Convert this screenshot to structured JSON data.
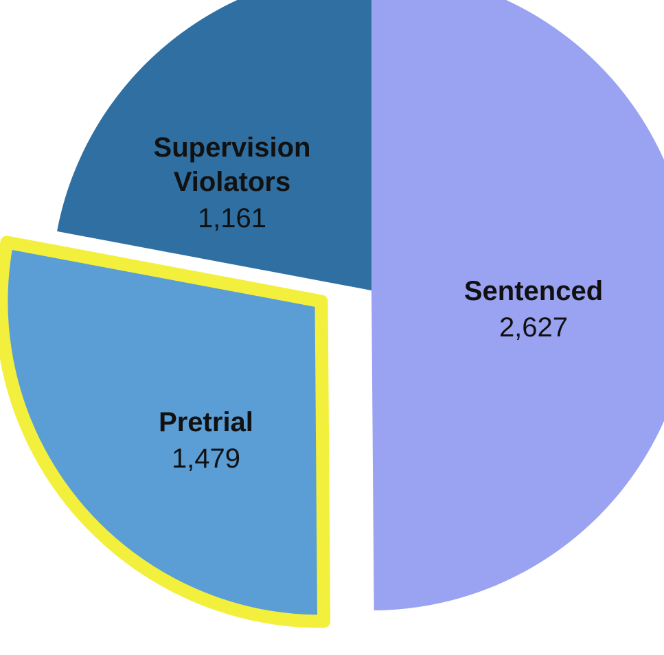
{
  "chart_data": {
    "type": "pie",
    "title": "",
    "slices": [
      {
        "name_lines": [
          "Sentenced"
        ],
        "value_label": "2,627",
        "value": 2627,
        "color": "#9aa2f2",
        "exploded": false,
        "highlighted": false
      },
      {
        "name_lines": [
          "Pretrial"
        ],
        "value_label": "1,479",
        "value": 1479,
        "color": "#5b9ed6",
        "exploded": true,
        "highlighted": true,
        "highlight_color": "#f2f03c"
      },
      {
        "name_lines": [
          "Supervision",
          "Violators"
        ],
        "value_label": "1,161",
        "value": 1161,
        "color": "#2f6fa2",
        "exploded": false,
        "highlighted": false
      }
    ],
    "start_angle_deg": -90,
    "direction": "clockwise",
    "legend": "none",
    "data_labels": "inside"
  }
}
